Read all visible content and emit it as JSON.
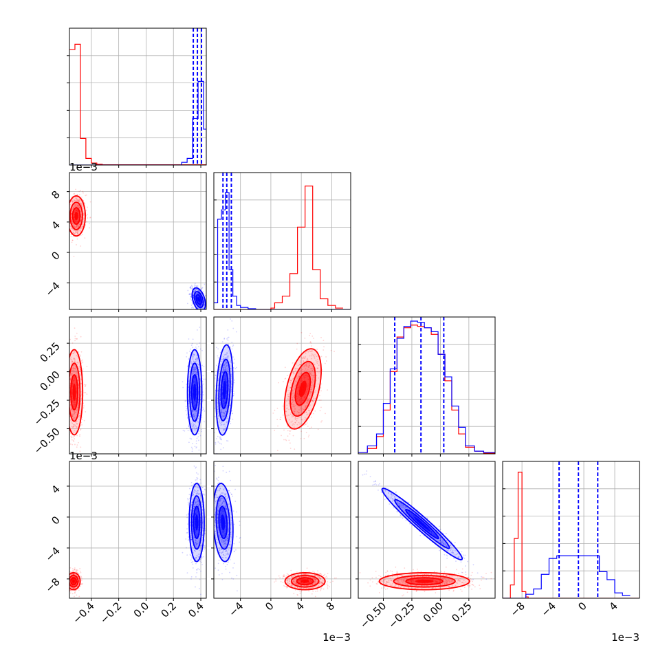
{
  "chart_data": {
    "type": "corner",
    "title": "",
    "series": [
      {
        "name": "",
        "color": "#ff0000"
      },
      {
        "name": "",
        "color": "#0000ff"
      }
    ],
    "parameters": [
      {
        "index": 0,
        "range": [
          -0.56,
          0.44
        ],
        "ticks": [
          -0.4,
          -0.2,
          0.0,
          0.2,
          0.4
        ],
        "tick_labels": [
          "−0.4",
          "−0.2",
          "0.0",
          "0.2",
          "0.4"
        ],
        "offset_text": ""
      },
      {
        "index": 1,
        "range": [
          -0.0075,
          0.0105
        ],
        "ticks": [
          -0.004,
          0.0,
          0.004,
          0.008
        ],
        "x_tick_labels": [
          "−4",
          "0",
          "4",
          "8"
        ],
        "y_tick_labels": [
          "−4",
          "0",
          "4",
          "8"
        ],
        "offset_text": "1e−3"
      },
      {
        "index": 2,
        "range": [
          -0.72,
          0.48
        ],
        "ticks": [
          -0.5,
          -0.25,
          0.0,
          0.25
        ],
        "x_tick_labels": [
          "−0.50",
          "−0.25",
          "0.00",
          "0.25"
        ],
        "y_tick_labels": [
          "−0.50",
          "−0.25",
          "0.00",
          "0.25"
        ],
        "offset_text": ""
      },
      {
        "index": 3,
        "range": [
          -0.0105,
          0.0072
        ],
        "ticks": [
          -0.008,
          -0.004,
          0.0,
          0.004
        ],
        "x_tick_labels": [
          "−8",
          "−4",
          "0",
          "4"
        ],
        "y_tick_labels": [
          "−8",
          "−4",
          "0",
          "4"
        ],
        "offset_text": "1e−3"
      }
    ],
    "offset_labels": {
      "row1": "1e−3",
      "row3": "1e−3",
      "col1": "1e−3",
      "col3": "1e−3"
    },
    "grid": true,
    "histograms": [
      {
        "param": 0,
        "red": {
          "bins": [
            [
              -0.56,
              -0.52,
              0.87
            ],
            [
              -0.52,
              -0.48,
              0.91
            ],
            [
              -0.48,
              -0.44,
              0.2
            ],
            [
              -0.44,
              -0.4,
              0.05
            ],
            [
              -0.4,
              -0.36,
              0.015
            ],
            [
              -0.36,
              -0.32,
              0.006
            ],
            [
              -0.32,
              0.44,
              0.002
            ]
          ]
        },
        "blue": {
          "bins": [
            [
              -0.56,
              0.26,
              0.0
            ],
            [
              0.26,
              0.3,
              0.02
            ],
            [
              0.3,
              0.34,
              0.05
            ],
            [
              0.34,
              0.38,
              0.35
            ],
            [
              0.38,
              0.42,
              0.63
            ],
            [
              0.42,
              0.44,
              0.27
            ]
          ]
        },
        "blue_quantiles": [
          0.345,
          0.375,
          0.405
        ]
      },
      {
        "param": 1,
        "blue": {
          "bins": [
            [
              -0.0075,
              -0.007,
              0.05
            ],
            [
              -0.007,
              -0.0065,
              0.68
            ],
            [
              -0.0065,
              -0.006,
              0.75
            ],
            [
              -0.006,
              -0.0055,
              0.88
            ],
            [
              -0.0055,
              -0.005,
              0.3
            ],
            [
              -0.005,
              -0.0045,
              0.1
            ],
            [
              -0.0045,
              -0.004,
              0.03
            ],
            [
              -0.004,
              -0.003,
              0.015
            ],
            [
              -0.003,
              -0.002,
              0.005
            ],
            [
              -0.002,
              0.0105,
              0.0
            ]
          ]
        },
        "red": {
          "bins": [
            [
              -0.0075,
              0.0,
              0.0
            ],
            [
              0.0,
              0.0005,
              0.01
            ],
            [
              0.0005,
              0.0015,
              0.05
            ],
            [
              0.0015,
              0.0025,
              0.1
            ],
            [
              0.0025,
              0.0035,
              0.27
            ],
            [
              0.0035,
              0.0045,
              0.62
            ],
            [
              0.0045,
              0.0055,
              0.93
            ],
            [
              0.0055,
              0.0065,
              0.3
            ],
            [
              0.0065,
              0.0075,
              0.08
            ],
            [
              0.0075,
              0.0085,
              0.03
            ],
            [
              0.0085,
              0.0095,
              0.01
            ]
          ]
        },
        "blue_quantiles": [
          -0.0063,
          -0.0058,
          -0.0052
        ]
      },
      {
        "param": 2,
        "blue": {
          "bins": [
            [
              -0.72,
              -0.64,
              0.01
            ],
            [
              -0.64,
              -0.56,
              0.06
            ],
            [
              -0.56,
              -0.5,
              0.15
            ],
            [
              -0.5,
              -0.44,
              0.38
            ],
            [
              -0.44,
              -0.38,
              0.64
            ],
            [
              -0.38,
              -0.32,
              0.87
            ],
            [
              -0.32,
              -0.26,
              0.96
            ],
            [
              -0.26,
              -0.2,
              1.0
            ],
            [
              -0.2,
              -0.14,
              0.99
            ],
            [
              -0.14,
              -0.08,
              0.95
            ],
            [
              -0.08,
              -0.02,
              0.92
            ],
            [
              -0.02,
              0.04,
              0.75
            ],
            [
              0.04,
              0.1,
              0.58
            ],
            [
              0.1,
              0.16,
              0.36
            ],
            [
              0.16,
              0.22,
              0.2
            ],
            [
              0.22,
              0.3,
              0.06
            ],
            [
              0.3,
              0.38,
              0.02
            ],
            [
              0.38,
              0.48,
              0.01
            ]
          ]
        },
        "red": {
          "bins": [
            [
              -0.72,
              -0.64,
              0.01
            ],
            [
              -0.64,
              -0.56,
              0.04
            ],
            [
              -0.56,
              -0.5,
              0.13
            ],
            [
              -0.5,
              -0.44,
              0.33
            ],
            [
              -0.44,
              -0.38,
              0.62
            ],
            [
              -0.38,
              -0.32,
              0.88
            ],
            [
              -0.32,
              -0.26,
              0.95
            ],
            [
              -0.26,
              -0.2,
              0.97
            ],
            [
              -0.2,
              -0.14,
              0.96
            ],
            [
              -0.14,
              -0.08,
              0.95
            ],
            [
              -0.08,
              -0.02,
              0.9
            ],
            [
              -0.02,
              0.04,
              0.75
            ],
            [
              0.04,
              0.1,
              0.55
            ],
            [
              0.1,
              0.16,
              0.33
            ],
            [
              0.16,
              0.22,
              0.15
            ],
            [
              0.22,
              0.3,
              0.05
            ],
            [
              0.3,
              0.38,
              0.02
            ],
            [
              0.38,
              0.48,
              0.005
            ]
          ]
        },
        "blue_quantiles": [
          -0.4,
          -0.17,
          0.03
        ]
      },
      {
        "param": 3,
        "red": {
          "bins": [
            [
              -0.0105,
              -0.0095,
              0.0
            ],
            [
              -0.0095,
              -0.009,
              0.1
            ],
            [
              -0.009,
              -0.0085,
              0.45
            ],
            [
              -0.0085,
              -0.008,
              0.95
            ],
            [
              -0.008,
              -0.0075,
              0.05
            ],
            [
              -0.0075,
              -0.0072,
              0.01
            ],
            [
              -0.0072,
              0.0072,
              0.0
            ]
          ]
        },
        "blue": {
          "bins": [
            [
              -0.0105,
              -0.0075,
              0.0
            ],
            [
              -0.0075,
              -0.0065,
              0.03
            ],
            [
              -0.0065,
              -0.0055,
              0.07
            ],
            [
              -0.0055,
              -0.0045,
              0.18
            ],
            [
              -0.0045,
              -0.0035,
              0.3
            ],
            [
              -0.0035,
              0.002,
              0.32
            ],
            [
              0.002,
              0.003,
              0.2
            ],
            [
              0.003,
              0.004,
              0.14
            ],
            [
              0.004,
              0.005,
              0.04
            ],
            [
              0.005,
              0.006,
              0.02
            ]
          ]
        },
        "blue_quantiles": [
          -0.0032,
          -0.0007,
          0.0018
        ]
      }
    ],
    "pairs": [
      {
        "x": 0,
        "y": 1,
        "red": {
          "cx": -0.51,
          "cy": 0.0048,
          "sx": 0.03,
          "sy": 0.0012,
          "rho": 0.0
        },
        "blue": {
          "cx": 0.385,
          "cy": -0.0062,
          "sx": 0.022,
          "sy": 0.0007,
          "rho": -0.4
        }
      },
      {
        "x": 0,
        "y": 2,
        "red": {
          "cx": -0.525,
          "cy": -0.18,
          "sx": 0.028,
          "sy": 0.17,
          "rho": 0.0
        },
        "blue": {
          "cx": 0.355,
          "cy": -0.18,
          "sx": 0.024,
          "sy": 0.17,
          "rho": 0.0
        }
      },
      {
        "x": 0,
        "y": 3,
        "red": {
          "cx": -0.53,
          "cy": -0.0083,
          "sx": 0.022,
          "sy": 0.0005,
          "rho": 0.0
        },
        "blue": {
          "cx": 0.37,
          "cy": -0.0007,
          "sx": 0.025,
          "sy": 0.0023,
          "rho": 0.0
        }
      },
      {
        "x": 1,
        "y": 2,
        "blue": {
          "cx": -0.0061,
          "cy": -0.16,
          "sx": 0.0005,
          "sy": 0.18,
          "rho": 0.25
        },
        "red": {
          "cx": 0.0042,
          "cy": -0.15,
          "sx": 0.0011,
          "sy": 0.16,
          "rho": 0.45
        }
      },
      {
        "x": 1,
        "y": 3,
        "blue": {
          "cx": -0.0063,
          "cy": -0.0007,
          "sx": 0.0006,
          "sy": 0.0023,
          "rho": -0.2
        },
        "red": {
          "cx": 0.0045,
          "cy": -0.0083,
          "sx": 0.0012,
          "sy": 0.0005,
          "rho": 0.0
        }
      },
      {
        "x": 2,
        "y": 3,
        "blue": {
          "cx": -0.16,
          "cy": -0.0009,
          "sx": 0.16,
          "sy": 0.0021,
          "rho": -0.97
        },
        "red": {
          "cx": -0.14,
          "cy": -0.0083,
          "sx": 0.18,
          "sy": 0.0005,
          "rho": 0.0
        }
      }
    ]
  }
}
